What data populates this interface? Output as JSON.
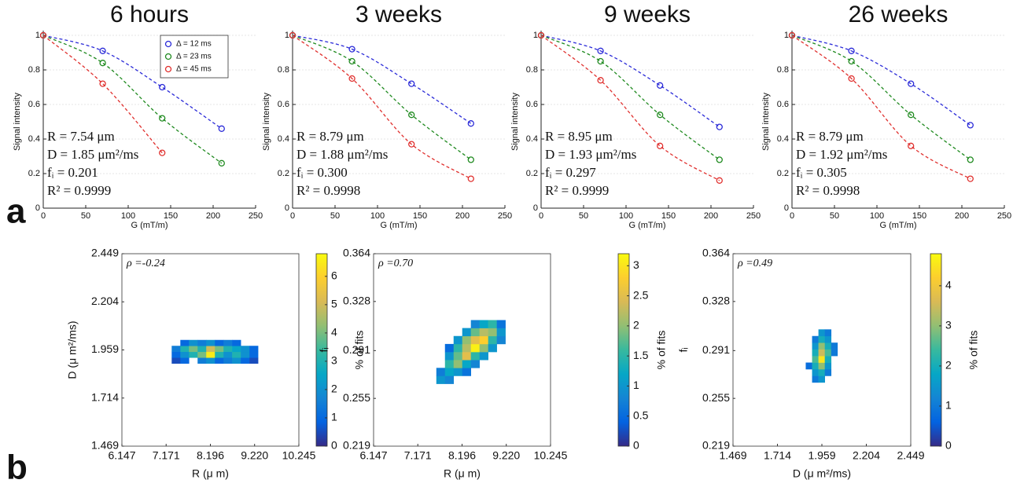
{
  "panel_labels": [
    "a",
    "b"
  ],
  "chart_data": [
    {
      "type": "line",
      "title": "6 hours",
      "xlabel": "G (mT/m)",
      "ylabel": "Signal intensity",
      "x": [
        0,
        70,
        140,
        210
      ],
      "xlim": [
        0,
        250
      ],
      "xticks": [
        0,
        50,
        100,
        150,
        200,
        250
      ],
      "ylim": [
        0,
        1
      ],
      "yticks": [
        0,
        0.2,
        0.4,
        0.6,
        0.8,
        1
      ],
      "grid": true,
      "legend": "upper right",
      "series": [
        {
          "name": "Δ = 12 ms",
          "color": "#2b2bd8",
          "values": [
            1,
            0.91,
            0.7,
            0.46
          ]
        },
        {
          "name": "Δ = 23 ms",
          "color": "#1f8a1f",
          "values": [
            1,
            0.84,
            0.52,
            0.26
          ]
        },
        {
          "name": "Δ = 45 ms",
          "color": "#e0302e",
          "values": [
            1,
            0.72,
            0.32,
            null
          ]
        }
      ],
      "annotations": [
        "R = 7.54 μm",
        "D = 1.85 μm²/ms",
        "fᵢ = 0.201",
        "R² = 0.9999"
      ]
    },
    {
      "type": "line",
      "title": "3 weeks",
      "xlabel": "G (mT/m)",
      "ylabel": "Signal intensity",
      "x": [
        0,
        70,
        140,
        210
      ],
      "xlim": [
        0,
        250
      ],
      "xticks": [
        0,
        50,
        100,
        150,
        200,
        250
      ],
      "ylim": [
        0,
        1
      ],
      "yticks": [
        0,
        0.2,
        0.4,
        0.6,
        0.8,
        1
      ],
      "grid": true,
      "series": [
        {
          "color": "#2b2bd8",
          "values": [
            1,
            0.92,
            0.72,
            0.49
          ]
        },
        {
          "color": "#1f8a1f",
          "values": [
            1,
            0.85,
            0.54,
            0.28
          ]
        },
        {
          "color": "#e0302e",
          "values": [
            1,
            0.75,
            0.37,
            0.17
          ]
        }
      ],
      "annotations": [
        "R = 8.79 μm",
        "D = 1.88 μm²/ms",
        "fᵢ = 0.300",
        "R² = 0.9998"
      ]
    },
    {
      "type": "line",
      "title": "9 weeks",
      "xlabel": "G (mT/m)",
      "ylabel": "Signal intensity",
      "x": [
        0,
        70,
        140,
        210
      ],
      "xlim": [
        0,
        250
      ],
      "xticks": [
        0,
        50,
        100,
        150,
        200,
        250
      ],
      "ylim": [
        0,
        1
      ],
      "yticks": [
        0,
        0.2,
        0.4,
        0.6,
        0.8,
        1
      ],
      "grid": true,
      "series": [
        {
          "color": "#2b2bd8",
          "values": [
            1,
            0.91,
            0.71,
            0.47
          ]
        },
        {
          "color": "#1f8a1f",
          "values": [
            1,
            0.85,
            0.54,
            0.28
          ]
        },
        {
          "color": "#e0302e",
          "values": [
            1,
            0.74,
            0.36,
            0.16
          ]
        }
      ],
      "annotations": [
        "R = 8.95 μm",
        "D = 1.93 μm²/ms",
        "fᵢ = 0.297",
        "R² = 0.9999"
      ]
    },
    {
      "type": "line",
      "title": "26 weeks",
      "xlabel": "G (mT/m)",
      "ylabel": "Signal intensity",
      "x": [
        0,
        70,
        140,
        210
      ],
      "xlim": [
        0,
        250
      ],
      "xticks": [
        0,
        50,
        100,
        150,
        200,
        250
      ],
      "ylim": [
        0,
        1
      ],
      "yticks": [
        0,
        0.2,
        0.4,
        0.6,
        0.8,
        1
      ],
      "grid": true,
      "series": [
        {
          "color": "#2b2bd8",
          "values": [
            1,
            0.91,
            0.72,
            0.48
          ]
        },
        {
          "color": "#1f8a1f",
          "values": [
            1,
            0.85,
            0.54,
            0.28
          ]
        },
        {
          "color": "#e0302e",
          "values": [
            1,
            0.75,
            0.36,
            0.17
          ]
        }
      ],
      "annotations": [
        "R = 8.79 μm",
        "D = 1.92 μm²/ms",
        "fᵢ = 0.305",
        "R² = 0.9998"
      ]
    },
    {
      "type": "heatmap",
      "xlabel": "R (μ m)",
      "ylabel": "D (μ m²/ms)",
      "colorbar_label": "% of fits",
      "annotation": "ρ =-0.24",
      "xlim": [
        6.147,
        10.245
      ],
      "xticks": [
        6.147,
        7.171,
        8.196,
        {
          "value": 9.22,
          "label": "9.220"
        },
        10.245
      ],
      "ylim": [
        1.469,
        2.449
      ],
      "yticks": [
        1.469,
        1.714,
        1.959,
        2.204,
        2.449
      ],
      "clim": [
        0,
        6.8
      ],
      "cticks": [
        0,
        1,
        2,
        3,
        4,
        5,
        6
      ],
      "colorscale": [
        "#352a87",
        "#0363e1",
        "#1485d4",
        "#06a7c6",
        "#38b99e",
        "#92bf73",
        "#d9ba56",
        "#fcce2e",
        "#f9fb0e"
      ],
      "xbins": [
        7.3,
        7.5,
        7.7,
        7.9,
        8.1,
        8.3,
        8.5,
        8.7,
        8.9,
        9.1,
        9.3
      ],
      "ybins": [
        1.89,
        1.92,
        1.95,
        1.98,
        2.01
      ],
      "z": [
        [
          0.5,
          1,
          null,
          1.5,
          2,
          1,
          1.5,
          2,
          1,
          0.5
        ],
        [
          1,
          2,
          3,
          4,
          6.5,
          3,
          2,
          3,
          2,
          1
        ],
        [
          1.5,
          3,
          4,
          3,
          5,
          4,
          3,
          2.5,
          2,
          1
        ],
        [
          null,
          1,
          2,
          1.5,
          2,
          1,
          1.5,
          1,
          null,
          null
        ]
      ]
    },
    {
      "type": "heatmap",
      "xlabel": "R (μ m)",
      "ylabel": "fᵢ",
      "colorbar_label": "% of fits",
      "annotation": "ρ =0.70",
      "xlim": [
        6.147,
        10.245
      ],
      "xticks": [
        6.147,
        7.171,
        8.196,
        {
          "value": 9.22,
          "label": "9.220"
        },
        10.245
      ],
      "ylim": [
        0.219,
        0.364
      ],
      "yticks": [
        0.219,
        0.255,
        0.291,
        0.328,
        0.364
      ],
      "clim": [
        0,
        3.2
      ],
      "cticks": [
        0,
        0.5,
        1,
        1.5,
        2,
        2.5,
        3
      ],
      "colorscale": [
        "#352a87",
        "#0363e1",
        "#1485d4",
        "#06a7c6",
        "#38b99e",
        "#92bf73",
        "#d9ba56",
        "#fcce2e",
        "#f9fb0e"
      ],
      "xbins": [
        7.6,
        7.8,
        8.0,
        8.2,
        8.4,
        8.6,
        8.8,
        9.0,
        9.2
      ],
      "ybins": [
        0.266,
        0.272,
        0.278,
        0.284,
        0.29,
        0.296,
        0.302,
        0.308,
        0.314
      ],
      "z": [
        [
          1,
          0.8,
          null,
          null,
          null,
          null,
          null,
          null
        ],
        [
          0.7,
          1.2,
          1,
          0.6,
          null,
          null,
          null,
          null
        ],
        [
          null,
          1.5,
          2,
          1.2,
          0.8,
          null,
          null,
          null
        ],
        [
          null,
          1,
          1.8,
          2.5,
          1.5,
          1,
          null,
          null
        ],
        [
          null,
          0.5,
          1.5,
          2.2,
          3.1,
          2,
          1,
          null
        ],
        [
          null,
          null,
          1,
          2,
          2.5,
          2.8,
          1.5,
          0.8
        ],
        [
          null,
          null,
          null,
          1,
          1.8,
          2.2,
          2,
          1
        ],
        [
          null,
          null,
          null,
          null,
          0.8,
          1.2,
          1.5,
          0.6
        ]
      ]
    },
    {
      "type": "heatmap",
      "xlabel": "D (μ m²/ms)",
      "ylabel": "fᵢ",
      "colorbar_label": "% of fits",
      "annotation": "ρ =0.49",
      "xlim": [
        1.469,
        2.449
      ],
      "xticks": [
        1.469,
        1.714,
        1.959,
        2.204,
        2.449
      ],
      "ylim": [
        0.219,
        0.364
      ],
      "yticks": [
        0.219,
        0.255,
        0.291,
        0.328,
        0.364
      ],
      "clim": [
        0,
        4.8
      ],
      "cticks": [
        0,
        1,
        2,
        3,
        4
      ],
      "colorscale": [
        "#352a87",
        "#0363e1",
        "#1485d4",
        "#06a7c6",
        "#38b99e",
        "#92bf73",
        "#d9ba56",
        "#fcce2e",
        "#f9fb0e"
      ],
      "xbins": [
        1.87,
        1.905,
        1.94,
        1.975,
        2.01,
        2.045
      ],
      "ybins": [
        0.267,
        0.272,
        0.277,
        0.282,
        0.287,
        0.292,
        0.297,
        0.302,
        0.307
      ],
      "z": [
        [
          null,
          1,
          1.5,
          null,
          null
        ],
        [
          null,
          1.5,
          2,
          1,
          null
        ],
        [
          0.8,
          2,
          3,
          1.5,
          null
        ],
        [
          null,
          2.5,
          4.5,
          2,
          null
        ],
        [
          null,
          2,
          3.5,
          2.5,
          1
        ],
        [
          null,
          1.5,
          3,
          2,
          1
        ],
        [
          null,
          1,
          2,
          1.5,
          null
        ],
        [
          null,
          null,
          1.5,
          1,
          null
        ]
      ]
    }
  ]
}
